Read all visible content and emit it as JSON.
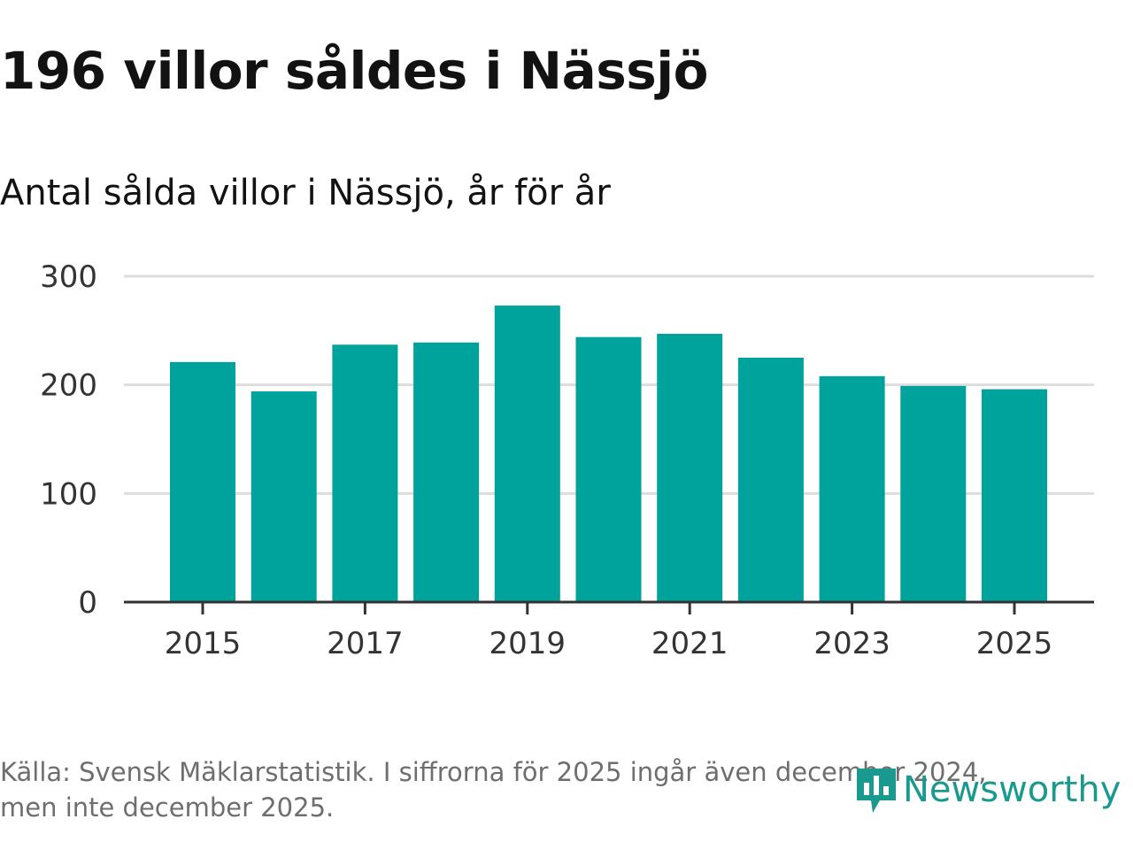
{
  "title": "196 villor såldes i Nässjö",
  "subtitle": "Antal sålda villor i Nässjö, år för år",
  "footer": {
    "line1": "Källa: Svensk Mäklarstatistik. I siffrorna för 2025 ingår även december 2024,",
    "line2": "men inte december 2025."
  },
  "brand": {
    "name": "Newsworthy",
    "color": "#1a9a8e"
  },
  "colors": {
    "bar": "#00a39b",
    "grid": "#dddddd",
    "axis": "#333333"
  },
  "chart_data": {
    "type": "bar",
    "title": "196 villor såldes i Nässjö",
    "subtitle": "Antal sålda villor i Nässjö, år för år",
    "xlabel": "",
    "ylabel": "",
    "categories": [
      "2015",
      "2016",
      "2017",
      "2018",
      "2019",
      "2020",
      "2021",
      "2022",
      "2023",
      "2024",
      "2025"
    ],
    "values": [
      221,
      194,
      237,
      239,
      273,
      244,
      247,
      225,
      208,
      199,
      196
    ],
    "x_tick_labels": [
      "2015",
      "2017",
      "2019",
      "2021",
      "2023",
      "2025"
    ],
    "y_ticks": [
      0,
      100,
      200,
      300
    ],
    "ylim": [
      0,
      300
    ],
    "grid": true,
    "legend": "none"
  }
}
